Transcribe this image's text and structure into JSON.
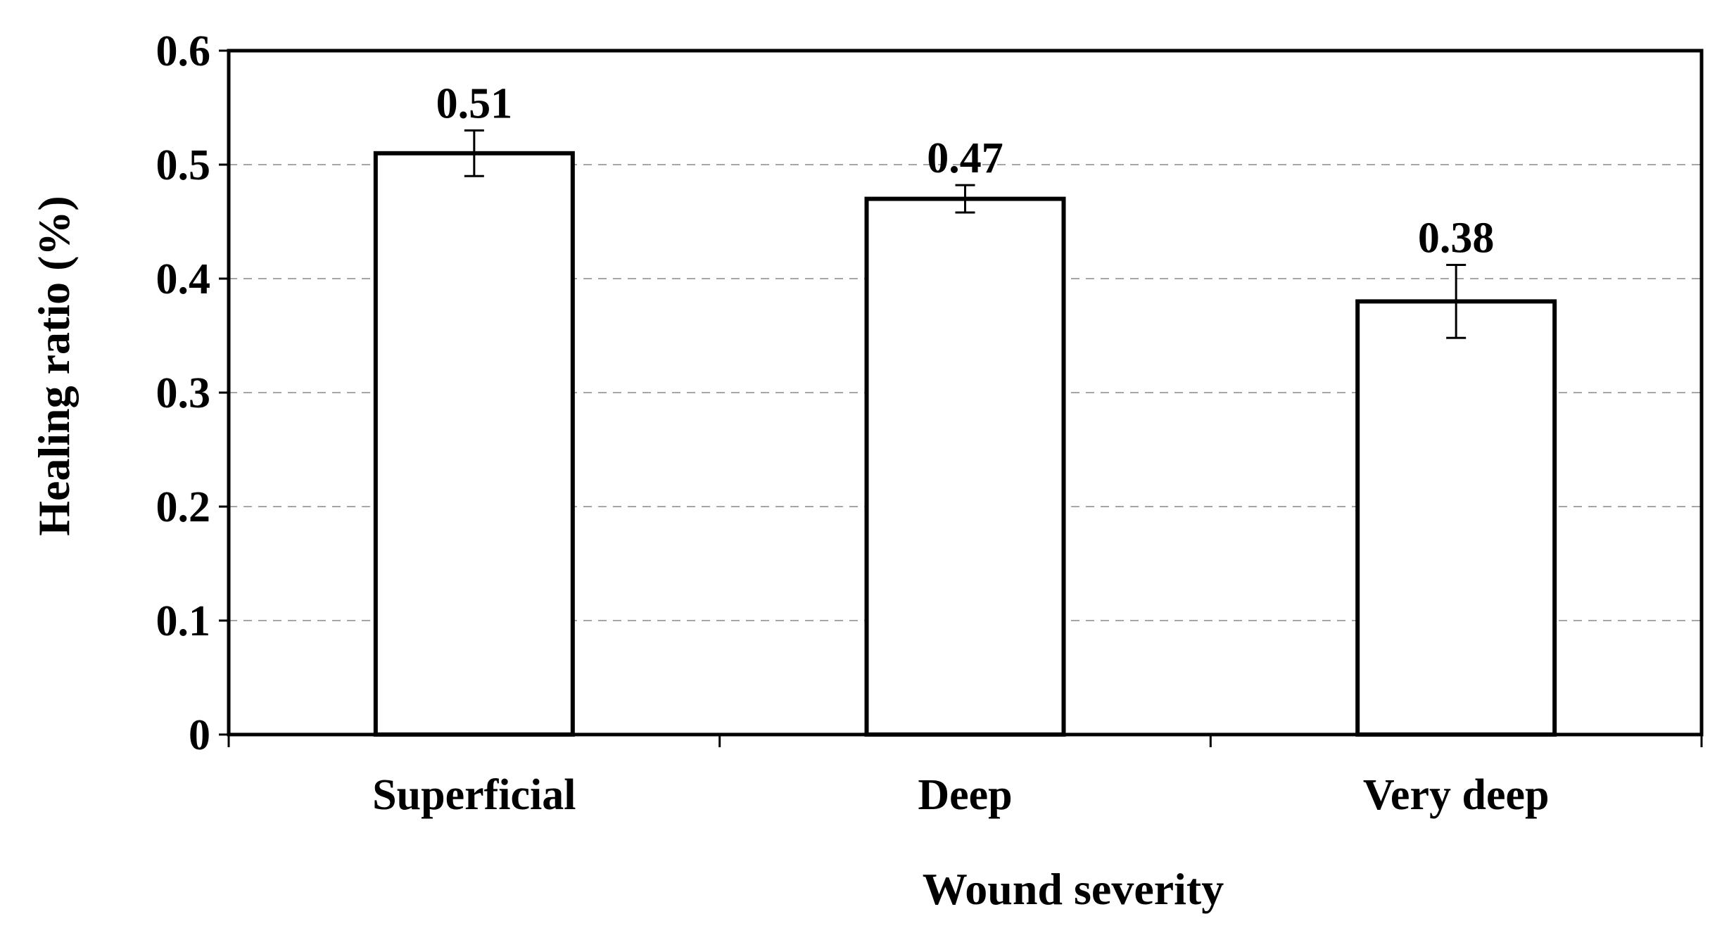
{
  "chart_data": {
    "type": "bar",
    "categories": [
      "Superficial",
      "Deep",
      "Very deep"
    ],
    "values": [
      0.51,
      0.47,
      0.38
    ],
    "error": [
      0.02,
      0.012,
      0.032
    ],
    "data_labels": [
      "0.51",
      "0.47",
      "0.38"
    ],
    "title": "",
    "xlabel": "Wound severity",
    "ylabel": "Healing ratio (%)",
    "ylim": [
      0,
      0.6
    ],
    "yticks": [
      0,
      0.1,
      0.2,
      0.3,
      0.4,
      0.5,
      0.6
    ],
    "ytick_labels": [
      "0",
      "0.1",
      "0.2",
      "0.3",
      "0.4",
      "0.5",
      "0.6"
    ],
    "grid": "horizontal dashed",
    "legend": "none",
    "colors": {
      "bar_fill": "#ffffff",
      "bar_edge": "#000000",
      "grid": "#a6a6a6"
    }
  }
}
